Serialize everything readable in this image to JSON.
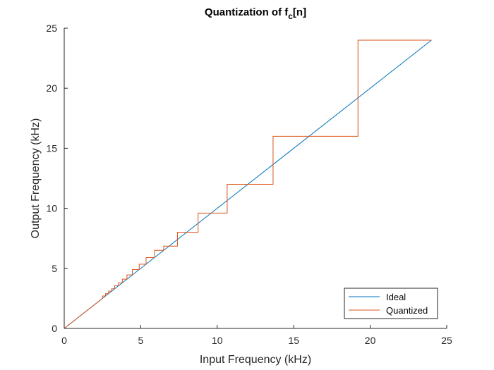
{
  "chart_data": {
    "type": "line",
    "title_main": "Quantization of f",
    "title_sub": "c",
    "title_tail": "[n]",
    "xlabel": "Input Frequency (kHz)",
    "ylabel": "Output Frequency (kHz)",
    "xlim": [
      0,
      25
    ],
    "ylim": [
      0,
      25
    ],
    "xticks": [
      0,
      5,
      10,
      15,
      20,
      25
    ],
    "yticks": [
      0,
      5,
      10,
      15,
      20,
      25
    ],
    "grid": false,
    "legend_position": "bottom-right",
    "series": [
      {
        "name": "Ideal",
        "color": "#0072BD",
        "x": [
          0,
          24
        ],
        "y": [
          0,
          24
        ]
      },
      {
        "name": "Quantized",
        "color": "#D95319",
        "x": [
          0,
          2.5,
          2.5,
          2.7,
          2.7,
          2.9,
          2.9,
          3.1,
          3.1,
          3.3,
          3.3,
          3.55,
          3.55,
          3.8,
          3.8,
          4.1,
          4.1,
          4.45,
          4.45,
          4.9,
          4.9,
          5.35,
          5.35,
          5.9,
          5.9,
          6.5,
          6.5,
          7.4,
          7.4,
          8.75,
          8.75,
          10.65,
          10.65,
          13.65,
          13.65,
          19.2,
          19.2,
          24
        ],
        "y": [
          0,
          2.5,
          2.7,
          2.7,
          2.9,
          2.9,
          3.1,
          3.1,
          3.3,
          3.3,
          3.55,
          3.55,
          3.8,
          3.8,
          4.1,
          4.1,
          4.45,
          4.45,
          4.9,
          4.9,
          5.35,
          5.35,
          5.9,
          5.9,
          6.5,
          6.5,
          6.85,
          6.85,
          8.0,
          8.0,
          9.6,
          9.6,
          12.0,
          12.0,
          16.0,
          16.0,
          24.0,
          24.0
        ]
      }
    ]
  }
}
